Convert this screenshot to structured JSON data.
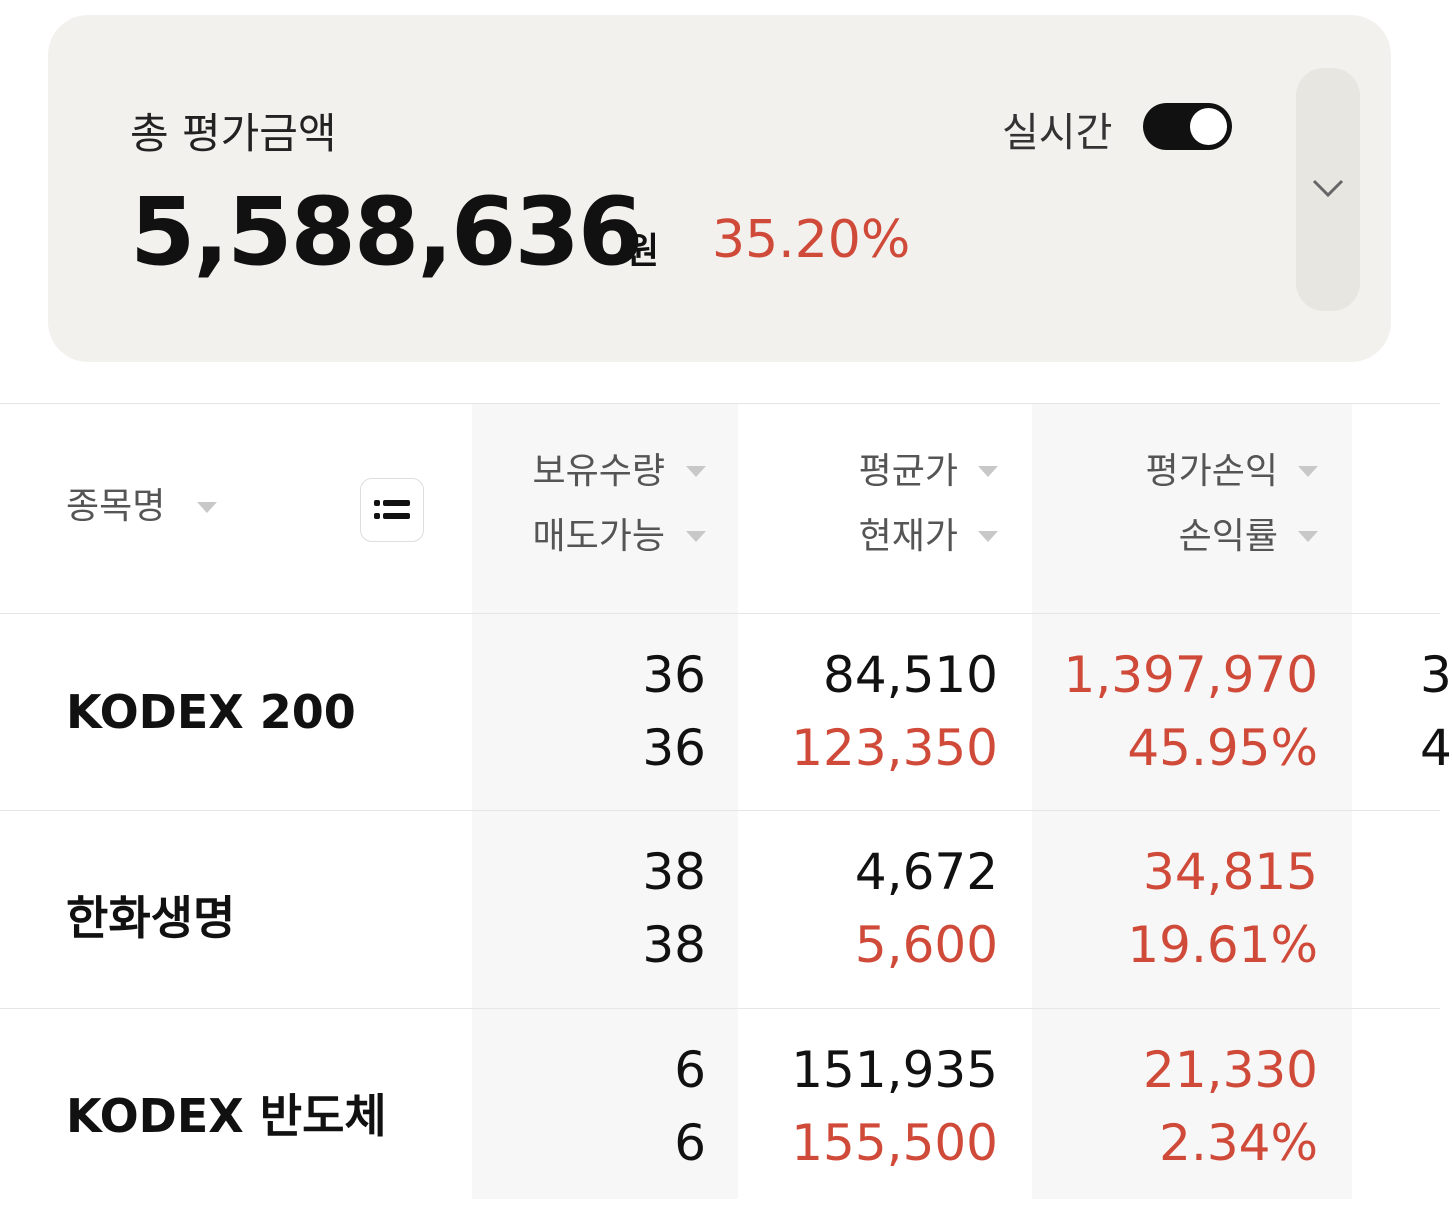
{
  "summary": {
    "title": "총 평가금액",
    "amount": "5,588,636",
    "unit": "원",
    "rate": "35.20%",
    "realtime_label": "실시간"
  },
  "table": {
    "headers": {
      "name": "종목명",
      "quantity": "보유수량",
      "sellable": "매도가능",
      "avg_price": "평균가",
      "current_price": "현재가",
      "profit": "평가손익",
      "profit_rate": "손익률"
    },
    "rows": [
      {
        "name": "KODEX 200",
        "quantity": "36",
        "sellable": "36",
        "avg_price": "84,510",
        "current_price": "123,350",
        "profit": "1,397,970",
        "profit_rate": "45.95%",
        "extra": [
          "3",
          "4"
        ]
      },
      {
        "name": "한화생명",
        "quantity": "38",
        "sellable": "38",
        "avg_price": "4,672",
        "current_price": "5,600",
        "profit": "34,815",
        "profit_rate": "19.61%"
      },
      {
        "name": "KODEX 반도체",
        "quantity": "6",
        "sellable": "6",
        "avg_price": "151,935",
        "current_price": "155,500",
        "profit": "21,330",
        "profit_rate": "2.34%"
      }
    ]
  }
}
